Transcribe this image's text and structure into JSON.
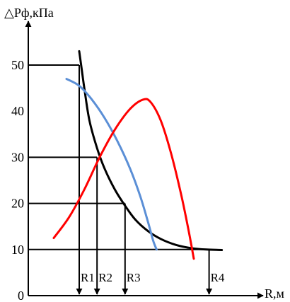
{
  "chart_data": {
    "type": "line",
    "ylabel": "△Pф,кПа",
    "xlabel": "R,м",
    "ylim": [
      0,
      60
    ],
    "y_ticks": [
      0,
      10,
      20,
      30,
      40,
      50
    ],
    "grid": false,
    "legend": "none",
    "series": [
      {
        "color": "#000000",
        "points": [
          [
            1.0,
            53
          ],
          [
            1.05,
            49
          ],
          [
            1.1,
            45
          ],
          [
            1.2,
            38
          ],
          [
            1.35,
            32
          ],
          [
            1.5,
            27.5
          ],
          [
            1.7,
            23
          ],
          [
            1.9,
            19.5
          ],
          [
            2.1,
            16.5
          ],
          [
            2.35,
            14.0
          ],
          [
            2.6,
            12.3
          ],
          [
            2.9,
            11.0
          ],
          [
            3.2,
            10.3
          ],
          [
            3.5,
            10.0
          ],
          [
            3.8,
            9.9
          ]
        ]
      },
      {
        "color": "#5b8fd6",
        "points": [
          [
            0.75,
            47
          ],
          [
            1.0,
            45.5
          ],
          [
            1.25,
            42.5
          ],
          [
            1.5,
            38.5
          ],
          [
            1.75,
            33.5
          ],
          [
            2.0,
            27.5
          ],
          [
            2.2,
            21.5
          ],
          [
            2.35,
            16
          ],
          [
            2.45,
            12
          ],
          [
            2.52,
            10
          ]
        ]
      },
      {
        "color": "#ff0000",
        "points": [
          [
            0.5,
            12.5
          ],
          [
            0.8,
            17
          ],
          [
            1.1,
            23
          ],
          [
            1.4,
            30
          ],
          [
            1.7,
            36
          ],
          [
            2.0,
            40.5
          ],
          [
            2.25,
            42.5
          ],
          [
            2.4,
            42
          ],
          [
            2.6,
            38
          ],
          [
            2.8,
            31
          ],
          [
            3.0,
            22
          ],
          [
            3.15,
            14
          ],
          [
            3.25,
            8
          ]
        ]
      }
    ],
    "thresholds": [
      {
        "y": 50,
        "x_end": 1.0
      },
      {
        "y": 30,
        "x_end": 1.35
      },
      {
        "y": 20,
        "x_end": 1.9
      },
      {
        "y": 10,
        "x_end": 3.55
      }
    ],
    "radius_markers": [
      {
        "label": "R1",
        "x": 1.0,
        "y_top": 50
      },
      {
        "label": "R2",
        "x": 1.35,
        "y_top": 30
      },
      {
        "label": "R3",
        "x": 1.9,
        "y_top": 20
      },
      {
        "label": "R4",
        "x": 3.55,
        "y_top": 10
      }
    ]
  }
}
